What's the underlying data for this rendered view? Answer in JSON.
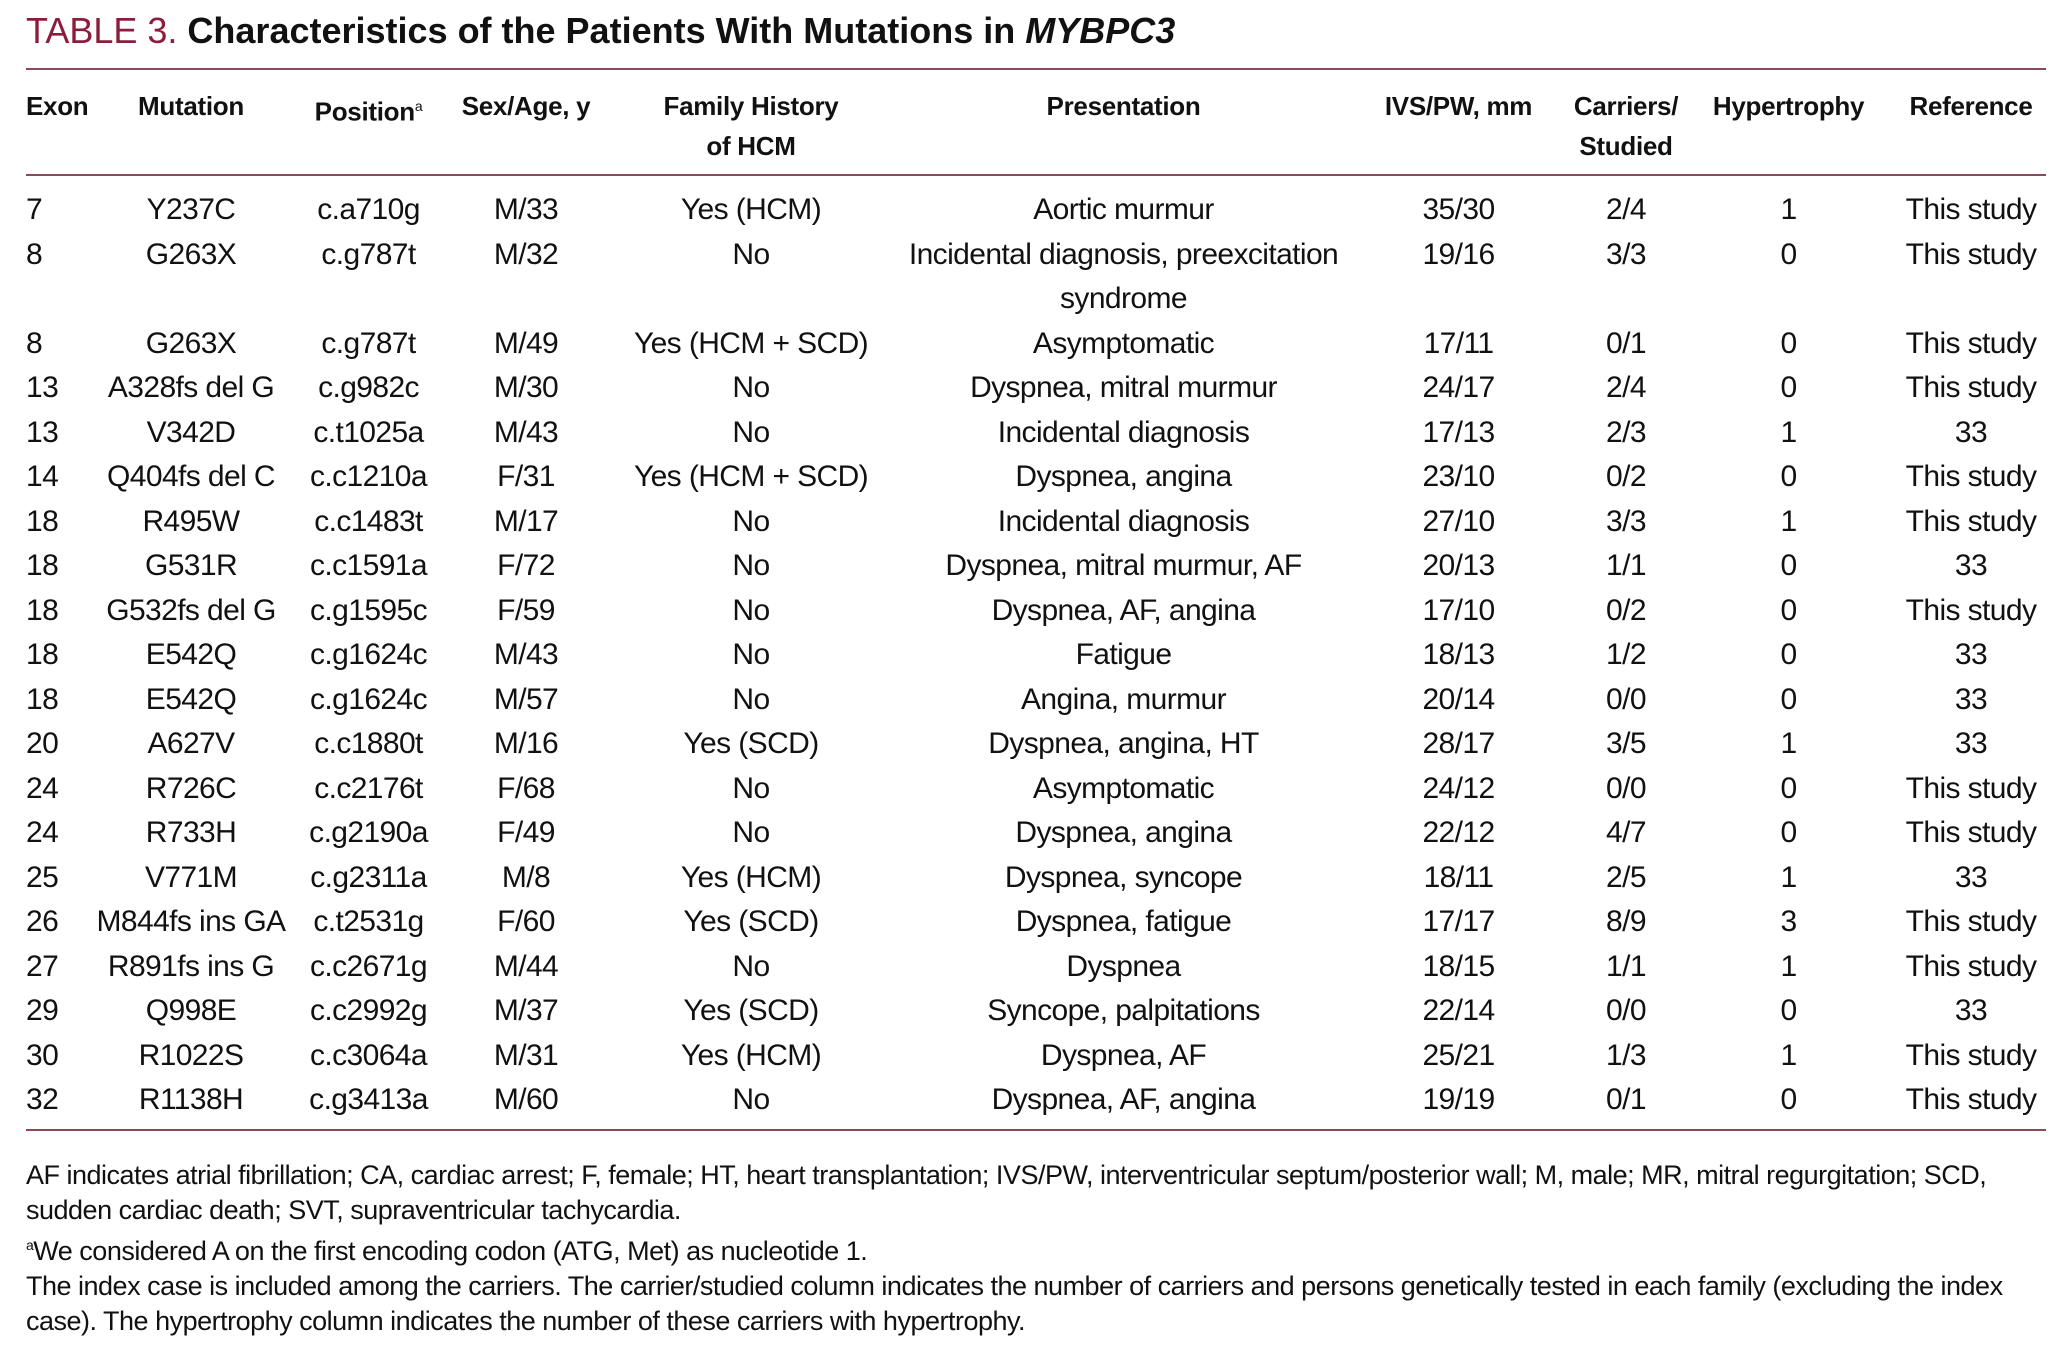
{
  "title": {
    "label": "TABLE 3.",
    "text": "Characteristics of the Patients With Mutations in",
    "gene": "MYBPC3"
  },
  "table": {
    "headers": [
      {
        "lines": [
          "Exon"
        ]
      },
      {
        "lines": [
          "Mutation"
        ]
      },
      {
        "lines": [
          "Position"
        ],
        "sup": "a"
      },
      {
        "lines": [
          "Sex/Age, y"
        ]
      },
      {
        "lines": [
          "Family History",
          "of HCM"
        ]
      },
      {
        "lines": [
          "Presentation"
        ]
      },
      {
        "lines": [
          "IVS/PW, mm"
        ]
      },
      {
        "lines": [
          "Carriers/",
          "Studied"
        ]
      },
      {
        "lines": [
          "Hypertrophy"
        ]
      },
      {
        "lines": [
          "Reference"
        ]
      }
    ],
    "rows": [
      [
        "7",
        "Y237C",
        "c.a710g",
        "M/33",
        "Yes (HCM)",
        "Aortic murmur",
        "35/30",
        "2/4",
        "1",
        "This study"
      ],
      [
        "8",
        "G263X",
        "c.g787t",
        "M/32",
        "No",
        "Incidental diagnosis, preexcitation syndrome",
        "19/16",
        "3/3",
        "0",
        "This study"
      ],
      [
        "8",
        "G263X",
        "c.g787t",
        "M/49",
        "Yes (HCM + SCD)",
        "Asymptomatic",
        "17/11",
        "0/1",
        "0",
        "This study"
      ],
      [
        "13",
        "A328fs del G",
        "c.g982c",
        "M/30",
        "No",
        "Dyspnea, mitral murmur",
        "24/17",
        "2/4",
        "0",
        "This study"
      ],
      [
        "13",
        "V342D",
        "c.t1025a",
        "M/43",
        "No",
        "Incidental diagnosis",
        "17/13",
        "2/3",
        "1",
        "33"
      ],
      [
        "14",
        "Q404fs del C",
        "c.c1210a",
        "F/31",
        "Yes (HCM + SCD)",
        "Dyspnea, angina",
        "23/10",
        "0/2",
        "0",
        "This study"
      ],
      [
        "18",
        "R495W",
        "c.c1483t",
        "M/17",
        "No",
        "Incidental diagnosis",
        "27/10",
        "3/3",
        "1",
        "This study"
      ],
      [
        "18",
        "G531R",
        "c.c1591a",
        "F/72",
        "No",
        "Dyspnea, mitral murmur, AF",
        "20/13",
        "1/1",
        "0",
        "33"
      ],
      [
        "18",
        "G532fs del G",
        "c.g1595c",
        "F/59",
        "No",
        "Dyspnea, AF, angina",
        "17/10",
        "0/2",
        "0",
        "This study"
      ],
      [
        "18",
        "E542Q",
        "c.g1624c",
        "M/43",
        "No",
        "Fatigue",
        "18/13",
        "1/2",
        "0",
        "33"
      ],
      [
        "18",
        "E542Q",
        "c.g1624c",
        "M/57",
        "No",
        "Angina, murmur",
        "20/14",
        "0/0",
        "0",
        "33"
      ],
      [
        "20",
        "A627V",
        "c.c1880t",
        "M/16",
        "Yes (SCD)",
        "Dyspnea, angina, HT",
        "28/17",
        "3/5",
        "1",
        "33"
      ],
      [
        "24",
        "R726C",
        "c.c2176t",
        "F/68",
        "No",
        "Asymptomatic",
        "24/12",
        "0/0",
        "0",
        "This study"
      ],
      [
        "24",
        "R733H",
        "c.g2190a",
        "F/49",
        "No",
        "Dyspnea, angina",
        "22/12",
        "4/7",
        "0",
        "This study"
      ],
      [
        "25",
        "V771M",
        "c.g2311a",
        "M/8",
        "Yes (HCM)",
        "Dyspnea, syncope",
        "18/11",
        "2/5",
        "1",
        "33"
      ],
      [
        "26",
        "M844fs ins GA",
        "c.t2531g",
        "F/60",
        "Yes (SCD)",
        "Dyspnea, fatigue",
        "17/17",
        "8/9",
        "3",
        "This study"
      ],
      [
        "27",
        "R891fs ins G",
        "c.c2671g",
        "M/44",
        "No",
        "Dyspnea",
        "18/15",
        "1/1",
        "1",
        "This study"
      ],
      [
        "29",
        "Q998E",
        "c.c2992g",
        "M/37",
        "Yes (SCD)",
        "Syncope, palpitations",
        "22/14",
        "0/0",
        "0",
        "33"
      ],
      [
        "30",
        "R1022S",
        "c.c3064a",
        "M/31",
        "Yes (HCM)",
        "Dyspnea, AF",
        "25/21",
        "1/3",
        "1",
        "This study"
      ],
      [
        "32",
        "R1138H",
        "c.g3413a",
        "M/60",
        "No",
        "Dyspnea, AF, angina",
        "19/19",
        "0/1",
        "0",
        "This study"
      ]
    ]
  },
  "notes": [
    {
      "text": "AF indicates atrial fibrillation; CA, cardiac arrest; F, female; HT, heart transplantation; IVS/PW, interventricular septum/posterior wall; M, male; MR, mitral regurgitation; SCD, sudden cardiac death; SVT, supraventricular tachycardia."
    },
    {
      "sup": "a",
      "text": "We considered A on the first encoding codon (ATG, Met) as nucleotide 1."
    },
    {
      "text": "The index case is included among the carriers. The carrier/studied column indicates the number of carriers and persons genetically tested in each family (excluding the index case). The hypertrophy column indicates the number of these carriers with hypertrophy."
    }
  ]
}
